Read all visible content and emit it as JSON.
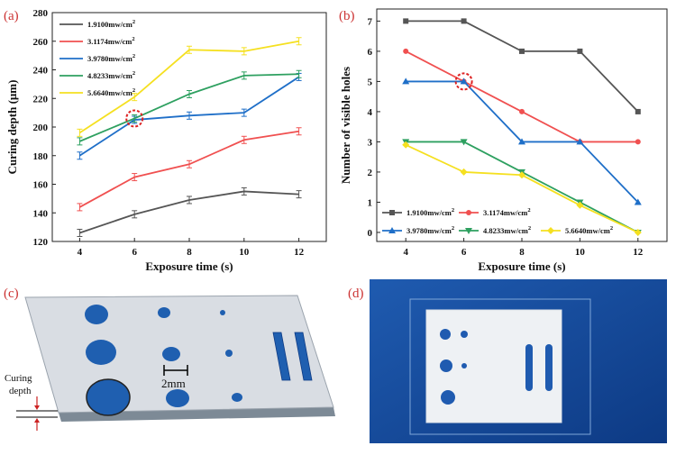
{
  "panels": {
    "a": {
      "label": "(a)"
    },
    "b": {
      "label": "(b)"
    },
    "c": {
      "label": "(c)",
      "curing_label_line1": "Curing",
      "curing_label_line2": "depth",
      "scale_label": "2mm"
    },
    "d": {
      "label": "(d)"
    }
  },
  "chart_data": [
    {
      "type": "line",
      "panel": "a",
      "xlabel": "Exposure time (s)",
      "ylabel": "Curing depth (μm)",
      "xlim": [
        3,
        13
      ],
      "ylim": [
        120,
        280
      ],
      "x_ticks": [
        4,
        6,
        8,
        10,
        12
      ],
      "y_ticks": [
        120,
        140,
        160,
        180,
        200,
        220,
        240,
        260,
        280
      ],
      "x": [
        4,
        6,
        8,
        10,
        12
      ],
      "error_bars": true,
      "highlight": {
        "x": 6,
        "y": 206,
        "style": "red dashed circle"
      },
      "legend_placement": "top-left",
      "series": [
        {
          "name": "1.9100mw/cm",
          "sup": "2",
          "color": "#555555",
          "values": [
            126,
            139,
            149,
            155,
            153
          ]
        },
        {
          "name": "3.1174mw/cm",
          "sup": "2",
          "color": "#f05050",
          "values": [
            144,
            165,
            174,
            191,
            197
          ]
        },
        {
          "name": "3.9780mw/cm",
          "sup": "2",
          "color": "#1f6fc8",
          "values": [
            180,
            205,
            208,
            210,
            235
          ]
        },
        {
          "name": "4.8233mw/cm",
          "sup": "2",
          "color": "#2ea060",
          "values": [
            190,
            206,
            223,
            236,
            237
          ]
        },
        {
          "name": "5.6640mw/cm",
          "sup": "2",
          "color": "#f5e020",
          "values": [
            196,
            221,
            254,
            253,
            260
          ]
        }
      ]
    },
    {
      "type": "line",
      "panel": "b",
      "xlabel": "Exposure time (s)",
      "ylabel": "Number of visible holes",
      "xlim": [
        3,
        13
      ],
      "ylim": [
        -0.3,
        7.4
      ],
      "x_ticks": [
        4,
        6,
        8,
        10,
        12
      ],
      "y_ticks": [
        0,
        1,
        2,
        3,
        4,
        5,
        6,
        7
      ],
      "x": [
        4,
        6,
        8,
        10,
        12
      ],
      "highlight": {
        "x": 6,
        "y": 5,
        "style": "red dashed circle"
      },
      "legend_placement": "bottom-left",
      "series": [
        {
          "name": "1.9100mw/cm",
          "sup": "2",
          "color": "#555555",
          "marker": "square",
          "values": [
            7,
            7,
            6,
            6,
            4
          ]
        },
        {
          "name": "3.1174mw/cm",
          "sup": "2",
          "color": "#f05050",
          "marker": "circle",
          "values": [
            6,
            5,
            4,
            3,
            3
          ]
        },
        {
          "name": "3.9780mw/cm",
          "sup": "2",
          "color": "#1f6fc8",
          "marker": "triangle",
          "values": [
            5,
            5,
            3,
            3,
            1
          ]
        },
        {
          "name": "4.8233mw/cm",
          "sup": "2",
          "color": "#2ea060",
          "marker": "triangle-down",
          "values": [
            3,
            3,
            2,
            1,
            0
          ]
        },
        {
          "name": "5.6640mw/cm",
          "sup": "2",
          "color": "#f5e020",
          "marker": "diamond",
          "values": [
            2.9,
            2,
            1.9,
            0.9,
            0
          ]
        }
      ]
    }
  ]
}
